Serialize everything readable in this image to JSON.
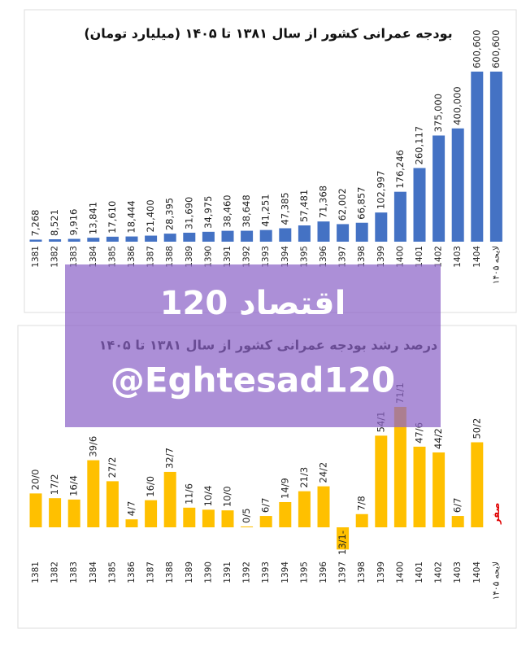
{
  "chart_data": [
    {
      "type": "bar",
      "title": "بودجه عمرانی کشور از سال ۱۳۸۱ تا ۱۴۰۵ (میلیارد تومان)",
      "color": "#4472c4",
      "categories": [
        "1381",
        "1382",
        "1383",
        "1384",
        "1385",
        "1386",
        "1387",
        "1388",
        "1389",
        "1390",
        "1391",
        "1392",
        "1393",
        "1394",
        "1395",
        "1396",
        "1397",
        "1398",
        "1399",
        "1400",
        "1401",
        "1402",
        "1403",
        "1404",
        "لایحه ۱۴۰۵"
      ],
      "values": [
        7268,
        8521,
        9916,
        13841,
        17610,
        18444,
        21400,
        28395,
        31690,
        34975,
        38460,
        38648,
        41251,
        47385,
        57481,
        71368,
        62002,
        66857,
        102997,
        176246,
        260117,
        375000,
        400000,
        600600,
        600600
      ],
      "value_labels": [
        "7,268",
        "8,521",
        "9,916",
        "13,841",
        "17,610",
        "18,444",
        "21,400",
        "28,395",
        "31,690",
        "34,975",
        "38,460",
        "38,648",
        "41,251",
        "47,385",
        "57,481",
        "71,368",
        "62,002",
        "66,857",
        "102,997",
        "176,246",
        "260,117",
        "375,000",
        "400,000",
        "600,600",
        "600,600"
      ]
    },
    {
      "type": "bar",
      "title": "درصد رشد بودجه عمرانی کشور از سال ۱۳۸۱ تا ۱۴۰۵",
      "color": "#ffc000",
      "categories": [
        "1381",
        "1382",
        "1383",
        "1384",
        "1385",
        "1386",
        "1387",
        "1388",
        "1389",
        "1390",
        "1391",
        "1392",
        "1393",
        "1394",
        "1395",
        "1396",
        "1397",
        "1398",
        "1399",
        "1400",
        "1401",
        "1402",
        "1403",
        "1404",
        "لایحه ۱۴۰۵"
      ],
      "values": [
        20.0,
        17.2,
        16.4,
        39.6,
        27.2,
        4.7,
        16.0,
        32.7,
        11.6,
        10.4,
        10.0,
        0.5,
        6.7,
        14.9,
        21.3,
        24.2,
        -13.1,
        7.8,
        54.1,
        71.1,
        47.6,
        44.2,
        6.7,
        50.2,
        0
      ],
      "value_labels": [
        "20/0",
        "17/2",
        "16/4",
        "39/6",
        "27/2",
        "4/7",
        "16/0",
        "32/7",
        "11/6",
        "10/4",
        "10/0",
        "0/5",
        "6/7",
        "14/9",
        "21/3",
        "24/2",
        "13/1-",
        "7/8",
        "54/1",
        "71/1",
        "47/6",
        "44/2",
        "6/7",
        "50/2",
        "صفر"
      ]
    }
  ],
  "watermark": {
    "name": "اقتصاد 120",
    "handle": "@Eghtesad120"
  }
}
